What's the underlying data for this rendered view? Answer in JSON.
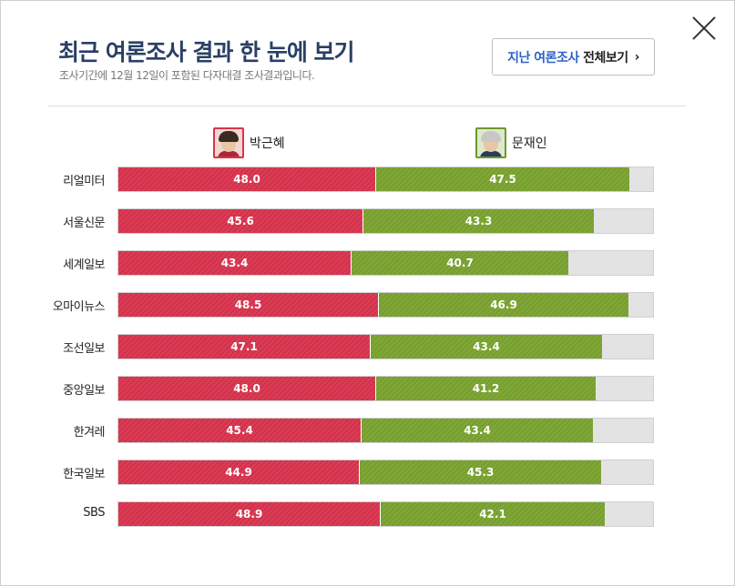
{
  "header": {
    "title": "최근 여론조사 결과 한 눈에 보기",
    "subtitle": "조사기간에 12월 12일이 포함된 다자대결 조사결과입니다.",
    "view_all_highlight": "지난 여론조사",
    "view_all_rest": "전체보기",
    "view_all_chevron": "›",
    "close_icon": "close-x"
  },
  "colors": {
    "red": "#d5304a",
    "green": "#769f2b",
    "track": "#e3e3e3",
    "title": "#2a3f64",
    "link": "#2f62c7"
  },
  "chart_data": {
    "type": "bar",
    "stacked": true,
    "orientation": "horizontal",
    "xlim": [
      0,
      100
    ],
    "categories": [
      "리얼미터",
      "서울신문",
      "세계일보",
      "오마이뉴스",
      "조선일보",
      "중앙일보",
      "한겨레",
      "한국일보",
      "SBS"
    ],
    "series": [
      {
        "name": "박근혜",
        "color": "#d5304a",
        "values": [
          48.0,
          45.6,
          43.4,
          48.5,
          47.1,
          48.0,
          45.4,
          44.9,
          48.9
        ]
      },
      {
        "name": "문재인",
        "color": "#769f2b",
        "values": [
          47.5,
          43.3,
          40.7,
          46.9,
          43.4,
          41.2,
          43.4,
          45.3,
          42.1
        ]
      }
    ]
  }
}
